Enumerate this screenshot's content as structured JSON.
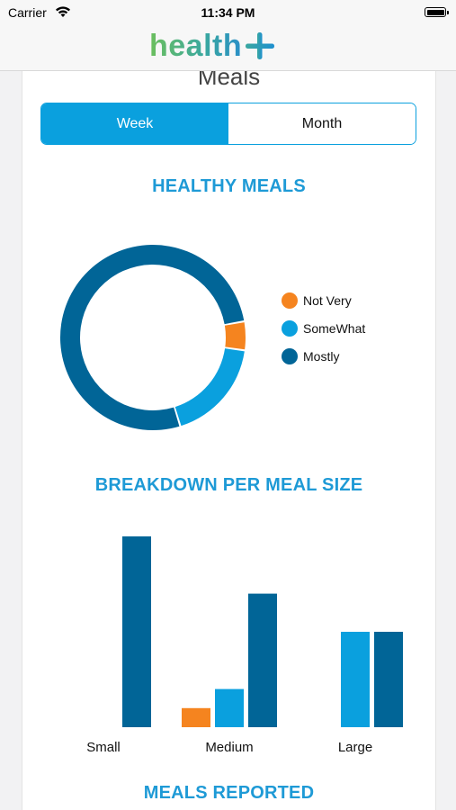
{
  "status_bar": {
    "carrier": "Carrier",
    "time": "11:34 PM"
  },
  "nav": {
    "logo_text": "health",
    "logo_symbol": "+"
  },
  "screen": {
    "section_title": "Meals",
    "segments": [
      {
        "label": "Week",
        "selected": true
      },
      {
        "label": "Month",
        "selected": false
      }
    ],
    "pie_heading": "HEALTHY MEALS",
    "bar_heading": "BREAKDOWN PER MEAL SIZE",
    "reported_heading": "MEALS REPORTED"
  },
  "colors": {
    "accent": "#0aa0de",
    "not_very": "#f5841f",
    "somewhat": "#0aa0de",
    "mostly": "#016597",
    "heading": "#1e9ad6"
  },
  "chart_data": [
    {
      "type": "pie",
      "title": "HEALTHY MEALS",
      "labels": [
        "Not Very",
        "SomeWhat",
        "Mostly"
      ],
      "values": [
        5,
        18,
        77
      ],
      "colors": [
        "#f5841f",
        "#0aa0de",
        "#016597"
      ],
      "legend_placement": "right"
    },
    {
      "type": "bar",
      "title": "BREAKDOWN PER MEAL SIZE",
      "categories": [
        "Small",
        "Medium",
        "Large"
      ],
      "series": [
        {
          "values": [
            0,
            1,
            0
          ],
          "color": "#f5841f"
        },
        {
          "values": [
            0,
            2,
            5
          ],
          "color": "#0aa0de"
        },
        {
          "values": [
            10,
            7,
            5
          ],
          "color": "#016597"
        }
      ],
      "ylim": [
        0,
        10
      ],
      "grid": false
    }
  ]
}
